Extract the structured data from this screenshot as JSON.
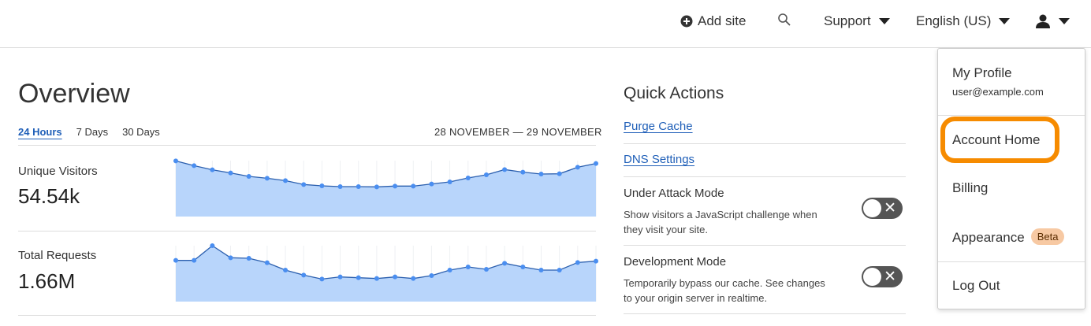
{
  "topbar": {
    "add_site": "Add site",
    "support": "Support",
    "language": "English (US)"
  },
  "overview": {
    "title": "Overview",
    "tabs": [
      {
        "label": "24 Hours",
        "active": true
      },
      {
        "label": "7 Days"
      },
      {
        "label": "30 Days"
      }
    ],
    "date_range": "28 NOVEMBER — 29 NOVEMBER",
    "metrics": [
      {
        "label": "Unique Visitors",
        "value": "54.54k"
      },
      {
        "label": "Total Requests",
        "value": "1.66M"
      }
    ]
  },
  "chart_data": [
    {
      "type": "area",
      "series": [
        {
          "values": [
            212,
            194,
            178,
            166,
            153,
            146,
            137,
            122,
            117,
            114,
            114,
            113,
            116,
            116,
            124,
            132,
            147,
            159,
            179,
            169,
            162,
            163,
            188,
            202
          ]
        }
      ]
    },
    {
      "type": "area",
      "series": [
        {
          "values": [
            157,
            157,
            213,
            167,
            165,
            148,
            120,
            101,
            86,
            94,
            91,
            88,
            94,
            88,
            99,
            120,
            132,
            123,
            146,
            132,
            120,
            120,
            149,
            154
          ]
        }
      ]
    }
  ],
  "quick_actions": {
    "title": "Quick Actions",
    "links": [
      "Purge Cache",
      "DNS Settings"
    ],
    "toggles": [
      {
        "label": "Under Attack Mode",
        "desc": "Show visitors a JavaScript challenge when they visit your site.",
        "on": false
      },
      {
        "label": "Development Mode",
        "desc": "Temporarily bypass our cache. See changes to your origin server in realtime.",
        "on": false
      }
    ]
  },
  "user_menu": {
    "profile": "My Profile",
    "email": "user@example.com",
    "account_home": "Account Home",
    "billing": "Billing",
    "appearance": "Appearance",
    "beta": "Beta",
    "logout": "Log Out",
    "highlight_color": "#f68b00"
  },
  "colors": {
    "accent": "#1f5fb8",
    "chart_fill": "#b8d5fb",
    "chart_point": "#4a8ef0"
  }
}
